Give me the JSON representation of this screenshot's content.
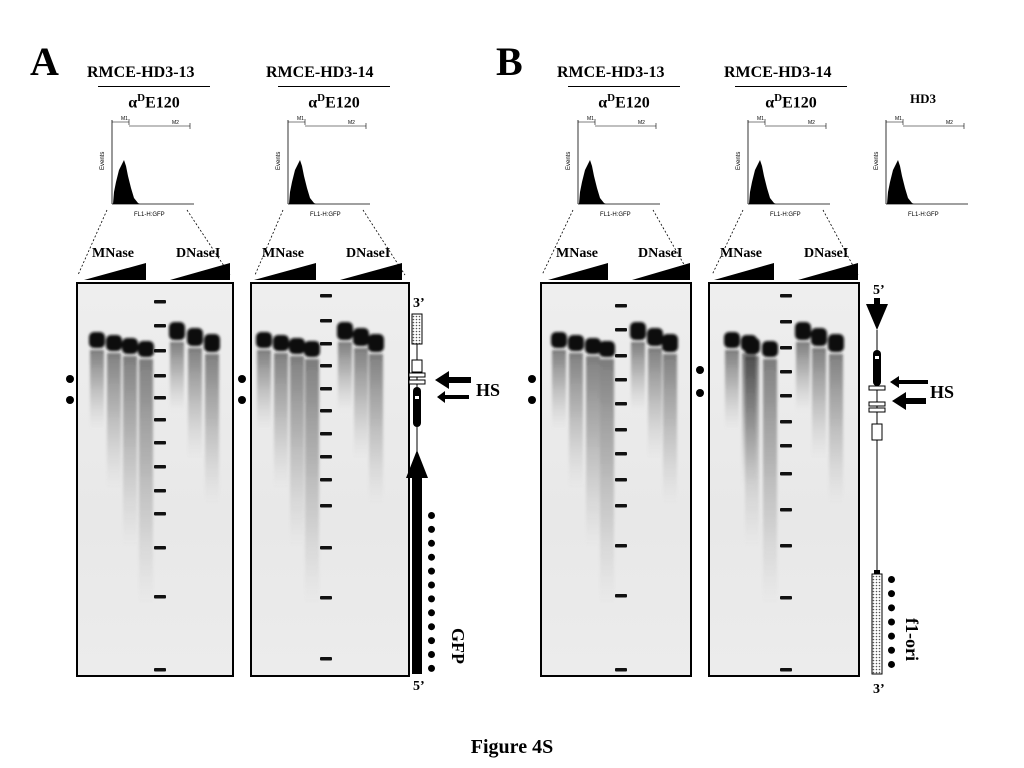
{
  "figure": {
    "caption": "Figure 4S",
    "panels": {
      "A": {
        "letter": "A",
        "samples": [
          {
            "name": "RMCE-HD3-13",
            "antibody_prefix": "α",
            "antibody_sup": "D",
            "antibody_suffix": "E120"
          },
          {
            "name": "RMCE-HD3-14",
            "antibody_prefix": "α",
            "antibody_sup": "D",
            "antibody_suffix": "E120"
          }
        ],
        "hs_label": "HS",
        "marker_label": "GFP",
        "end_top": "3’",
        "end_bottom": "5’"
      },
      "B": {
        "letter": "B",
        "samples": [
          {
            "name": "RMCE-HD3-13",
            "antibody_prefix": "α",
            "antibody_sup": "D",
            "antibody_suffix": "E120"
          },
          {
            "name": "RMCE-HD3-14",
            "antibody_prefix": "α",
            "antibody_sup": "D",
            "antibody_suffix": "E120"
          },
          {
            "name": "HD3"
          }
        ],
        "hs_label": "HS",
        "marker_label": "f1-ori",
        "end_top": "5’",
        "end_bottom": "3’"
      }
    },
    "histogram_axis": {
      "ylabel": "Events",
      "xlabel": "FL1-H:GFP",
      "gate1": "M1",
      "gate2": "M2"
    },
    "enzymes": {
      "mnase": "MNase",
      "dnase": "DNaseI"
    }
  }
}
